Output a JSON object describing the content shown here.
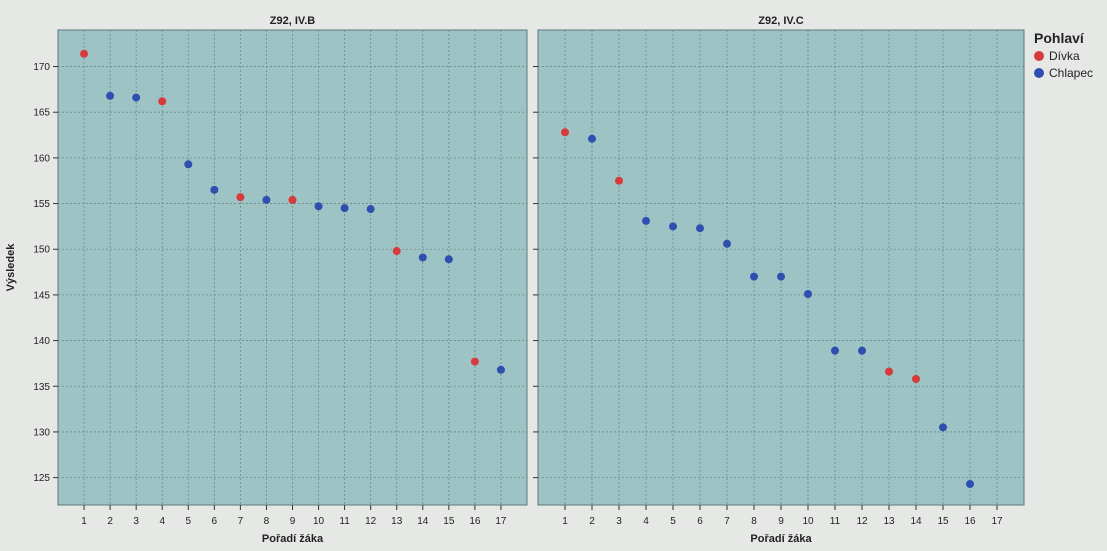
{
  "chart_data": [
    {
      "type": "scatter",
      "title": "Z92, IV.B",
      "xlabel": "Pořadí žáka",
      "ylabel": "Výsledek",
      "xlim": [
        0,
        18
      ],
      "ylim": [
        122,
        174
      ],
      "x_ticks": [
        1,
        2,
        3,
        4,
        5,
        6,
        7,
        8,
        9,
        10,
        11,
        12,
        13,
        14,
        15,
        16,
        17
      ],
      "y_ticks": [
        125,
        130,
        135,
        140,
        145,
        150,
        155,
        160,
        165,
        170
      ],
      "grid": true,
      "points": [
        {
          "x": 1,
          "y": 171.4,
          "sex": "Dívka"
        },
        {
          "x": 2,
          "y": 166.8,
          "sex": "Chlapec"
        },
        {
          "x": 3,
          "y": 166.6,
          "sex": "Chlapec"
        },
        {
          "x": 4,
          "y": 166.2,
          "sex": "Dívka"
        },
        {
          "x": 5,
          "y": 159.3,
          "sex": "Chlapec"
        },
        {
          "x": 6,
          "y": 156.5,
          "sex": "Chlapec"
        },
        {
          "x": 7,
          "y": 155.7,
          "sex": "Dívka"
        },
        {
          "x": 8,
          "y": 155.4,
          "sex": "Chlapec"
        },
        {
          "x": 9,
          "y": 155.4,
          "sex": "Dívka"
        },
        {
          "x": 10,
          "y": 154.7,
          "sex": "Chlapec"
        },
        {
          "x": 11,
          "y": 154.5,
          "sex": "Chlapec"
        },
        {
          "x": 12,
          "y": 154.4,
          "sex": "Chlapec"
        },
        {
          "x": 13,
          "y": 149.8,
          "sex": "Dívka"
        },
        {
          "x": 14,
          "y": 149.1,
          "sex": "Chlapec"
        },
        {
          "x": 15,
          "y": 148.9,
          "sex": "Chlapec"
        },
        {
          "x": 16,
          "y": 137.7,
          "sex": "Dívka"
        },
        {
          "x": 17,
          "y": 136.8,
          "sex": "Chlapec"
        }
      ]
    },
    {
      "type": "scatter",
      "title": "Z92, IV.C",
      "xlabel": "Pořadí žáka",
      "ylabel": "",
      "xlim": [
        0,
        18
      ],
      "ylim": [
        122,
        174
      ],
      "x_ticks": [
        1,
        2,
        3,
        4,
        5,
        6,
        7,
        8,
        9,
        10,
        11,
        12,
        13,
        14,
        15,
        16,
        17
      ],
      "y_ticks": [
        125,
        130,
        135,
        140,
        145,
        150,
        155,
        160,
        165,
        170
      ],
      "grid": true,
      "points": [
        {
          "x": 1,
          "y": 162.8,
          "sex": "Dívka"
        },
        {
          "x": 2,
          "y": 162.1,
          "sex": "Chlapec"
        },
        {
          "x": 3,
          "y": 157.5,
          "sex": "Dívka"
        },
        {
          "x": 4,
          "y": 153.1,
          "sex": "Chlapec"
        },
        {
          "x": 5,
          "y": 152.5,
          "sex": "Chlapec"
        },
        {
          "x": 6,
          "y": 152.3,
          "sex": "Chlapec"
        },
        {
          "x": 7,
          "y": 150.6,
          "sex": "Chlapec"
        },
        {
          "x": 8,
          "y": 147.0,
          "sex": "Chlapec"
        },
        {
          "x": 9,
          "y": 147.0,
          "sex": "Chlapec"
        },
        {
          "x": 10,
          "y": 145.1,
          "sex": "Chlapec"
        },
        {
          "x": 11,
          "y": 138.9,
          "sex": "Chlapec"
        },
        {
          "x": 12,
          "y": 138.9,
          "sex": "Chlapec"
        },
        {
          "x": 13,
          "y": 136.6,
          "sex": "Dívka"
        },
        {
          "x": 14,
          "y": 135.8,
          "sex": "Dívka"
        },
        {
          "x": 15,
          "y": 130.5,
          "sex": "Chlapec"
        },
        {
          "x": 16,
          "y": 124.3,
          "sex": "Chlapec"
        }
      ]
    }
  ],
  "legend": {
    "title": "Pohlaví",
    "placement": "right",
    "items": [
      {
        "label": "Dívka",
        "color": "#d63a3a"
      },
      {
        "label": "Chlapec",
        "color": "#2f4fb0"
      }
    ]
  },
  "colors": {
    "panel_background": "#9dc3c5",
    "grid": "#6f8a88",
    "Dívka": "#d63a3a",
    "Chlapec": "#2f4fb0"
  }
}
